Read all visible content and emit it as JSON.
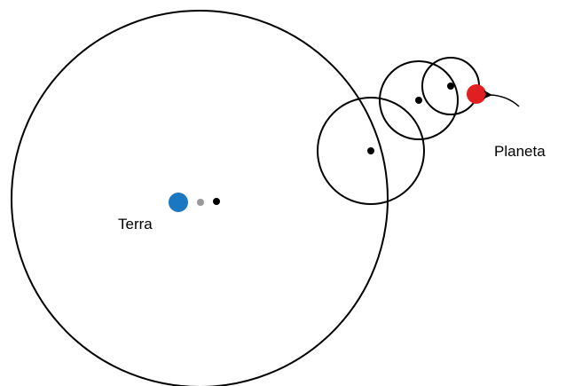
{
  "labels": {
    "earth": "Terra",
    "planet": "Planeta"
  }
}
